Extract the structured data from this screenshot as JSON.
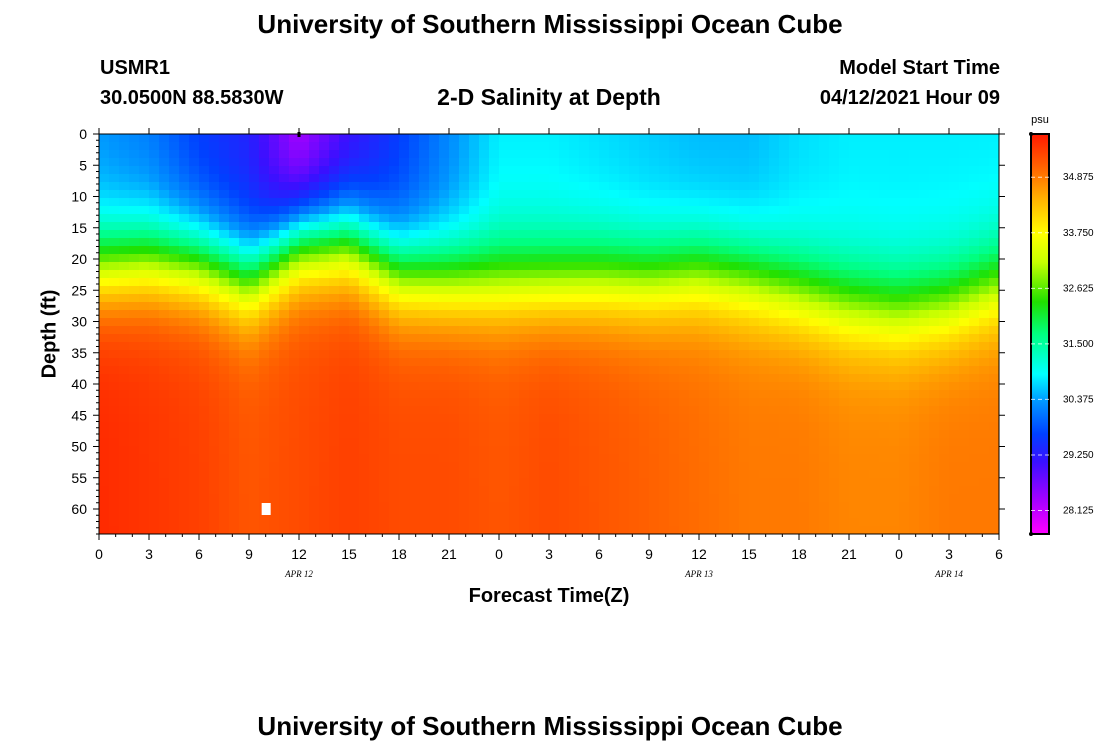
{
  "header": {
    "title": "University of Southern Mississippi Ocean Cube",
    "station_id": "USMR1",
    "station_coords": "30.0500N  88.5830W",
    "plot_title": "2-D Salinity at Depth",
    "model_start_label": "Model Start Time",
    "model_start_value": "04/12/2021 Hour 09"
  },
  "footer": {
    "title": "University of Southern Mississippi Ocean Cube"
  },
  "colors": {
    "background": "#ffffff",
    "axis": "#000000",
    "marker": "#ffffff"
  },
  "chart_data": {
    "type": "heatmap",
    "title": "2-D Salinity at Depth",
    "xlabel": "Forecast Time(Z)",
    "ylabel": "Depth (ft)",
    "x_hours_range": [
      0,
      54
    ],
    "x_tick_hours": [
      0,
      3,
      6,
      9,
      12,
      15,
      18,
      21,
      24,
      27,
      30,
      33,
      36,
      39,
      42,
      45,
      48,
      51,
      54
    ],
    "x_tick_labels": [
      "0",
      "3",
      "6",
      "9",
      "12",
      "15",
      "18",
      "21",
      "0",
      "3",
      "6",
      "9",
      "12",
      "15",
      "18",
      "21",
      "0",
      "3",
      "6"
    ],
    "date_labels": [
      {
        "label": "APR  12",
        "hour": 12
      },
      {
        "label": "APR  13",
        "hour": 36
      },
      {
        "label": "APR  14",
        "hour": 51
      }
    ],
    "ylim": [
      0,
      64
    ],
    "y_ticks": [
      0,
      5,
      10,
      15,
      20,
      25,
      30,
      35,
      40,
      45,
      50,
      55,
      60
    ],
    "colorbar": {
      "unit": "psu",
      "range": [
        27.65,
        35.75
      ],
      "ticks": [
        28.125,
        29.25,
        30.375,
        31.5,
        32.625,
        33.75,
        34.875
      ],
      "tick_labels": [
        "28.125",
        "29.250",
        "30.375",
        "31.500",
        "32.625",
        "33.750",
        "34.875"
      ]
    },
    "markers": [
      {
        "type": "white-square",
        "hour": 10,
        "depth": 60
      },
      {
        "type": "surface-tick",
        "hour": 12,
        "depth": 0
      }
    ],
    "surface_salinity_psu": [
      30.3,
      30.1,
      29.6,
      29.3,
      28.2,
      29.0,
      29.6,
      30.2,
      30.8,
      30.8,
      30.7,
      30.6,
      30.5,
      30.5,
      30.7,
      30.8,
      30.8,
      30.8,
      30.8
    ],
    "deep_salinity_psu": [
      35.6,
      35.5,
      35.4,
      35.2,
      35.3,
      35.4,
      35.3,
      35.3,
      35.2,
      35.3,
      35.2,
      35.1,
      35.0,
      34.9,
      34.9,
      34.8,
      34.8,
      34.9,
      34.9
    ],
    "halocline_depth_ft": [
      21,
      20,
      20.5,
      23,
      17,
      17,
      22,
      23,
      23.5,
      23.5,
      23,
      23,
      22,
      23,
      25,
      27,
      28,
      27,
      24
    ]
  }
}
